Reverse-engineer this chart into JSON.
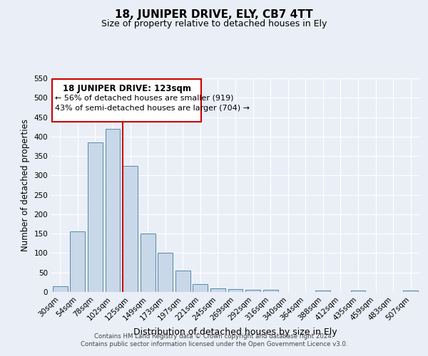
{
  "title": "18, JUNIPER DRIVE, ELY, CB7 4TT",
  "subtitle": "Size of property relative to detached houses in Ely",
  "xlabel": "Distribution of detached houses by size in Ely",
  "ylabel": "Number of detached properties",
  "categories": [
    "30sqm",
    "54sqm",
    "78sqm",
    "102sqm",
    "125sqm",
    "149sqm",
    "173sqm",
    "197sqm",
    "221sqm",
    "245sqm",
    "269sqm",
    "292sqm",
    "316sqm",
    "340sqm",
    "364sqm",
    "388sqm",
    "412sqm",
    "435sqm",
    "459sqm",
    "483sqm",
    "507sqm"
  ],
  "values": [
    15,
    155,
    385,
    420,
    325,
    150,
    100,
    55,
    20,
    9,
    7,
    5,
    5,
    0,
    0,
    4,
    0,
    4,
    0,
    0,
    4
  ],
  "bar_color": "#c8d8e8",
  "bar_edge_color": "#5588aa",
  "vline_color": "#cc0000",
  "vline_x_index": 4,
  "annotation_title": "18 JUNIPER DRIVE: 123sqm",
  "annotation_line1": "← 56% of detached houses are smaller (919)",
  "annotation_line2": "43% of semi-detached houses are larger (704) →",
  "annotation_box_color": "#ffffff",
  "annotation_box_edge": "#cc0000",
  "ylim": [
    0,
    550
  ],
  "yticks": [
    0,
    50,
    100,
    150,
    200,
    250,
    300,
    350,
    400,
    450,
    500,
    550
  ],
  "bg_color": "#eaeff7",
  "plot_bg_color": "#eaeff7",
  "grid_color": "#ffffff",
  "footer_line1": "Contains HM Land Registry data © Crown copyright and database right 2024.",
  "footer_line2": "Contains public sector information licensed under the Open Government Licence v3.0."
}
